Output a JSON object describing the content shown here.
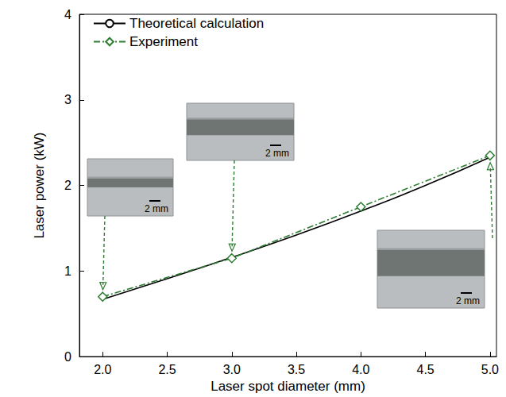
{
  "chart_data": {
    "type": "line",
    "x_label": "Laser spot diameter (mm)",
    "y_label": "Laser power (kW)",
    "xlim": [
      1.82,
      5.05
    ],
    "xticks": [
      {
        "value": 2.0,
        "label": "2.0"
      },
      {
        "value": 2.5,
        "label": "2.5"
      },
      {
        "value": 3.0,
        "label": "3.0"
      },
      {
        "value": 3.5,
        "label": "3.5"
      },
      {
        "value": 4.0,
        "label": "4.0"
      },
      {
        "value": 4.5,
        "label": "4.5"
      },
      {
        "value": 5.0,
        "label": "5.0"
      }
    ],
    "ylim": [
      0,
      4
    ],
    "yticks": [
      0,
      1,
      2,
      3,
      4
    ],
    "grid": false,
    "legend": "upper left",
    "series": [
      {
        "name": "Theoretical calculation",
        "color": "#000000",
        "line_style": "solid",
        "marker": "none",
        "x": [
          2.0,
          2.5,
          3.0,
          3.5,
          4.0,
          4.5,
          5.0
        ],
        "values": [
          0.67,
          0.91,
          1.16,
          1.42,
          1.7,
          2.0,
          2.33
        ]
      },
      {
        "name": "Experiment",
        "color": "#2e7d32",
        "line_style": "dashdot",
        "marker": "diamond",
        "x": [
          2.0,
          3.0,
          4.0,
          5.0
        ],
        "values": [
          0.7,
          1.15,
          1.75,
          2.35
        ]
      }
    ],
    "annotations": [
      {
        "x": 2.0,
        "y": 0.7,
        "text": "2 mm"
      },
      {
        "x": 3.0,
        "y": 1.15,
        "text": "2 mm"
      },
      {
        "x": 5.0,
        "y": 2.35,
        "text": "2 mm"
      }
    ]
  }
}
